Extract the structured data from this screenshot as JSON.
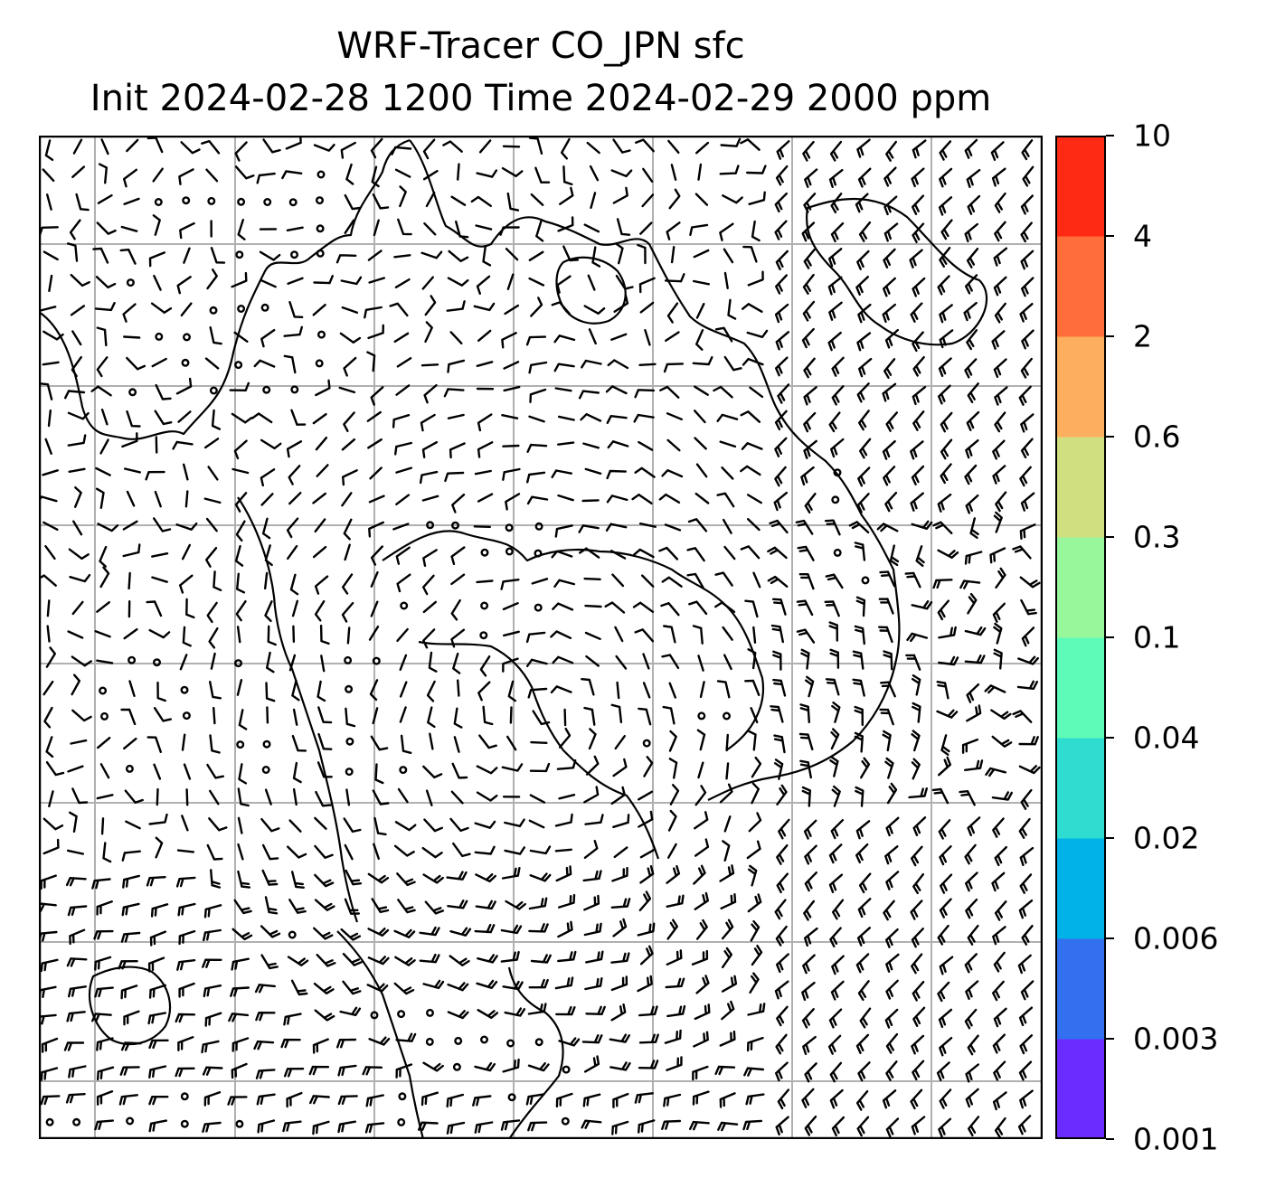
{
  "title": {
    "line1": "WRF-Tracer CO_JPN sfc",
    "line2": "Init 2024-02-28 1200 Time 2024-02-29 2000 ppm"
  },
  "colorbar": {
    "levels": [
      "0.001",
      "0.003",
      "0.006",
      "0.02",
      "0.04",
      "0.1",
      "0.3",
      "0.6",
      "2",
      "4",
      "10"
    ],
    "colors": [
      "#6a2cff",
      "#3370f0",
      "#00b2e8",
      "#2edcd0",
      "#5efab8",
      "#98f79a",
      "#d0e081",
      "#feae5f",
      "#ff6e3a",
      "#ff2a14"
    ]
  },
  "map": {
    "gridline_color": "#b0b0b0",
    "barb_color": "#000000",
    "coastline_color": "#000000"
  }
}
